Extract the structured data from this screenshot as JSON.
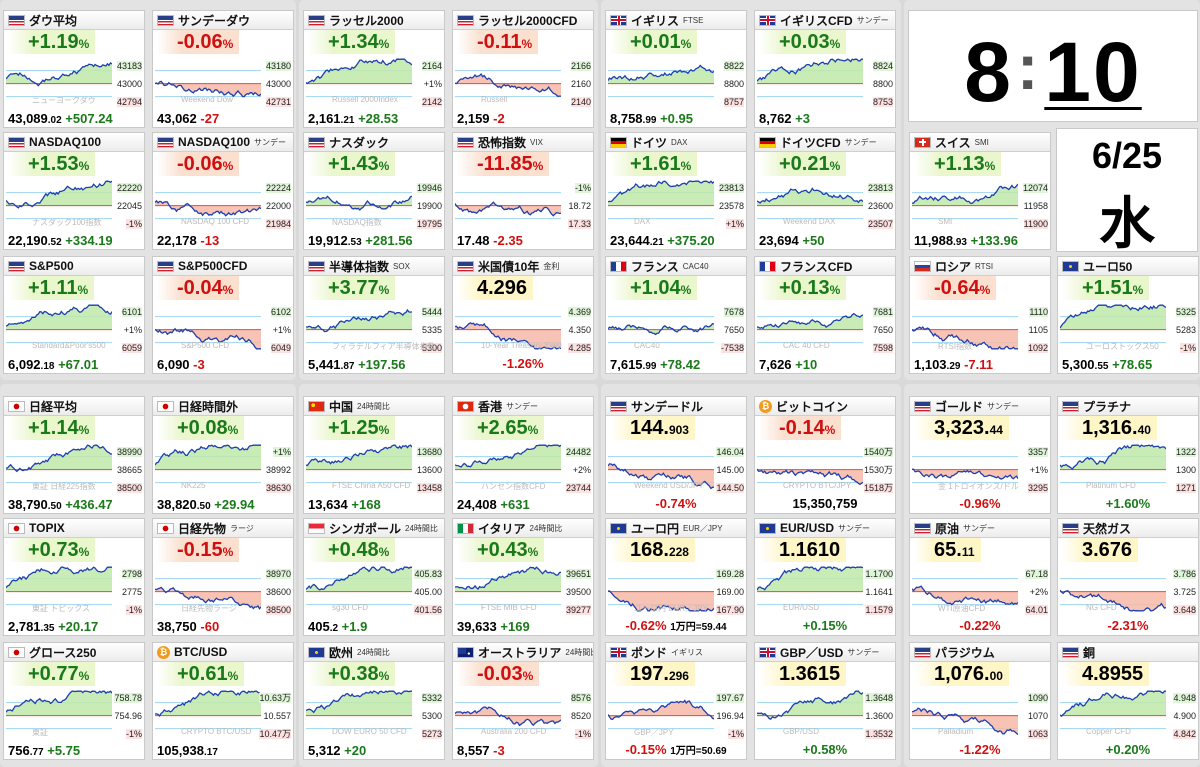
{
  "clock": {
    "hour": "8",
    "minute": "10",
    "date": "6/25",
    "weekday": "水"
  },
  "tiles": [
    {
      "id": "dow",
      "name": "ダウ平均",
      "sub": "",
      "flag": "us",
      "change": "+1.19",
      "unit": "%",
      "dir": "up",
      "price": "43,089",
      "dec": ".02",
      "diff": "+507.24",
      "axis": [
        "43183",
        "43000",
        "42794"
      ],
      "wm": "ニューヨークダウ"
    },
    {
      "id": "sunday-dow",
      "name": "サンデーダウ",
      "sub": "",
      "flag": "us",
      "change": "-0.06",
      "unit": "%",
      "dir": "dn",
      "price": "43,062",
      "dec": "",
      "diff": "-27",
      "axis": [
        "43180",
        "43000",
        "42731"
      ],
      "wm": "Weekend Dow"
    },
    {
      "id": "russell",
      "name": "ラッセル2000",
      "sub": "",
      "flag": "us",
      "change": "+1.34",
      "unit": "%",
      "dir": "up",
      "price": "2,161",
      "dec": ".21",
      "diff": "+28.53",
      "axis": [
        "2164",
        "+1%",
        "2142"
      ],
      "wm": "Russell 2000Index"
    },
    {
      "id": "russell-cfd",
      "name": "ラッセル2000CFD",
      "sub": "",
      "flag": "us",
      "change": "-0.11",
      "unit": "%",
      "dir": "dn",
      "price": "2,159",
      "dec": "",
      "diff": "-2",
      "axis": [
        "2166",
        "2160",
        "2140"
      ],
      "wm": "Russell"
    },
    {
      "id": "ftse",
      "name": "イギリス",
      "sub": "FTSE",
      "flag": "uk",
      "change": "+0.01",
      "unit": "%",
      "dir": "up",
      "price": "8,758",
      "dec": ".99",
      "diff": "+0.95",
      "axis": [
        "8822",
        "8800",
        "8757"
      ],
      "wm": ""
    },
    {
      "id": "ftse-cfd",
      "name": "イギリスCFD",
      "sub": "サンデー",
      "flag": "uk",
      "change": "+0.03",
      "unit": "%",
      "dir": "up",
      "price": "8,762",
      "dec": "",
      "diff": "+3",
      "axis": [
        "8824",
        "8800",
        "8753"
      ],
      "wm": ""
    },
    {
      "id": "nasdaq100",
      "name": "NASDAQ100",
      "sub": "",
      "flag": "us",
      "change": "+1.53",
      "unit": "%",
      "dir": "up",
      "price": "22,190",
      "dec": ".52",
      "diff": "+334.19",
      "axis": [
        "22220",
        "22045",
        "-1%"
      ],
      "wm": "ナスダック100指数"
    },
    {
      "id": "nasdaq100-sun",
      "name": "NASDAQ100",
      "sub": "サンデー",
      "flag": "us",
      "change": "-0.06",
      "unit": "%",
      "dir": "dn",
      "price": "22,178",
      "dec": "",
      "diff": "-13",
      "axis": [
        "22224",
        "22000",
        "21984"
      ],
      "wm": "NASDAQ 100 CFD"
    },
    {
      "id": "nasdaq",
      "name": "ナスダック",
      "sub": "",
      "flag": "us",
      "change": "+1.43",
      "unit": "%",
      "dir": "up",
      "price": "19,912",
      "dec": ".53",
      "diff": "+281.56",
      "axis": [
        "19946",
        "19900",
        "19795"
      ],
      "wm": "NASDAQ指数"
    },
    {
      "id": "vix",
      "name": "恐怖指数",
      "sub": "VIX",
      "flag": "us",
      "change": "-11.85",
      "unit": "%",
      "dir": "dn",
      "price": "17.48",
      "dec": "",
      "diff": "-2.35",
      "axis": [
        "-1%",
        "18.72",
        "17.33"
      ],
      "wm": ""
    },
    {
      "id": "dax",
      "name": "ドイツ",
      "sub": "DAX",
      "flag": "de",
      "change": "+1.61",
      "unit": "%",
      "dir": "up",
      "price": "23,644",
      "dec": ".21",
      "diff": "+375.20",
      "axis": [
        "23813",
        "23578",
        "+1%"
      ],
      "wm": "DAX"
    },
    {
      "id": "dax-cfd",
      "name": "ドイツCFD",
      "sub": "サンデー",
      "flag": "de",
      "change": "+0.21",
      "unit": "%",
      "dir": "up",
      "price": "23,694",
      "dec": "",
      "diff": "+50",
      "axis": [
        "23813",
        "23600",
        "23507"
      ],
      "wm": "Weekend DAX"
    },
    {
      "id": "smi",
      "name": "スイス",
      "sub": "SMI",
      "flag": "ch",
      "change": "+1.13",
      "unit": "%",
      "dir": "up",
      "price": "11,988",
      "dec": ".93",
      "diff": "+133.96",
      "axis": [
        "12074",
        "11958",
        "11900"
      ],
      "wm": "SMI"
    },
    {
      "id": "sp500",
      "name": "S&P500",
      "sub": "",
      "flag": "us",
      "change": "+1.11",
      "unit": "%",
      "dir": "up",
      "price": "6,092",
      "dec": ".18",
      "diff": "+67.01",
      "axis": [
        "6101",
        "+1%",
        "6059"
      ],
      "wm": "Standard&Poor's500"
    },
    {
      "id": "sp500-cfd",
      "name": "S&P500CFD",
      "sub": "",
      "flag": "us",
      "change": "-0.04",
      "unit": "%",
      "dir": "dn",
      "price": "6,090",
      "dec": "",
      "diff": "-3",
      "axis": [
        "6102",
        "+1%",
        "6049"
      ],
      "wm": "S&P500 CFD"
    },
    {
      "id": "sox",
      "name": "半導体指数",
      "sub": "SOX",
      "flag": "us",
      "change": "+3.77",
      "unit": "%",
      "dir": "up",
      "price": "5,441",
      "dec": ".87",
      "diff": "+197.56",
      "axis": [
        "5444",
        "5335",
        "5300"
      ],
      "wm": "フィラデルフィア半導体指数"
    },
    {
      "id": "us10y",
      "name": "米国債10年",
      "sub": "金利",
      "flag": "us",
      "change": "4.296",
      "unit": "",
      "dir": "lv",
      "price": "-1.26",
      "dec": "",
      "diff": "%",
      "axis": [
        "4.369",
        "4.350",
        "4.285"
      ],
      "wm": "10-Year Treasury Yield"
    },
    {
      "id": "cac40",
      "name": "フランス",
      "sub": "CAC40",
      "flag": "fr",
      "change": "+1.04",
      "unit": "%",
      "dir": "up",
      "price": "7,615",
      "dec": ".99",
      "diff": "+78.42",
      "axis": [
        "7678",
        "7650",
        "-7538"
      ],
      "wm": "CAC40"
    },
    {
      "id": "cac-cfd",
      "name": "フランスCFD",
      "sub": "",
      "flag": "fr",
      "change": "+0.13",
      "unit": "%",
      "dir": "up",
      "price": "7,626",
      "dec": "",
      "diff": "+10",
      "axis": [
        "7681",
        "7650",
        "7598"
      ],
      "wm": "CAC 40 CFD"
    },
    {
      "id": "rtsi",
      "name": "ロシア",
      "sub": "RTSI",
      "flag": "ru",
      "change": "-0.64",
      "unit": "%",
      "dir": "dn",
      "price": "1,103",
      "dec": ".29",
      "diff": "-7.11",
      "axis": [
        "1110",
        "1105",
        "1092"
      ],
      "wm": "RTSI指数"
    },
    {
      "id": "euro50",
      "name": "ユーロ50",
      "sub": "",
      "flag": "eu",
      "change": "+1.51",
      "unit": "%",
      "dir": "up",
      "price": "5,300",
      "dec": ".55",
      "diff": "+78.65",
      "axis": [
        "5325",
        "5283",
        "-1%"
      ],
      "wm": "ユーロストックス50"
    },
    {
      "id": "nikkei",
      "name": "日経平均",
      "sub": "",
      "flag": "jp",
      "change": "+1.14",
      "unit": "%",
      "dir": "up",
      "price": "38,790",
      "dec": ".50",
      "diff": "+436.47",
      "axis": [
        "38990",
        "38665",
        "38500"
      ],
      "wm": "東証 日経225指数"
    },
    {
      "id": "nikkei-night",
      "name": "日経時間外",
      "sub": "",
      "flag": "jp",
      "change": "+0.08",
      "unit": "%",
      "dir": "up",
      "price": "38,820",
      "dec": ".50",
      "diff": "+29.94",
      "axis": [
        "+1%",
        "38992",
        "38630"
      ],
      "wm": "NK225"
    },
    {
      "id": "china",
      "name": "中国",
      "sub": "24時間比",
      "flag": "cn",
      "change": "+1.25",
      "unit": "%",
      "dir": "up",
      "price": "13,634",
      "dec": "",
      "diff": "+168",
      "axis": [
        "13680",
        "13600",
        "13458"
      ],
      "wm": "FTSE China A50 CFD"
    },
    {
      "id": "hongkong",
      "name": "香港",
      "sub": "サンデー",
      "flag": "hk",
      "change": "+2.65",
      "unit": "%",
      "dir": "up",
      "price": "24,408",
      "dec": "",
      "diff": "+631",
      "axis": [
        "24482",
        "+2%",
        "23744"
      ],
      "wm": "ハンセン指数CFD"
    },
    {
      "id": "topix",
      "name": "TOPIX",
      "sub": "",
      "flag": "jp",
      "change": "+0.73",
      "unit": "%",
      "dir": "up",
      "price": "2,781",
      "dec": ".35",
      "diff": "+20.17",
      "axis": [
        "2798",
        "2775",
        "-1%"
      ],
      "wm": "東証 トピックス"
    },
    {
      "id": "nikkei-futures",
      "name": "日経先物",
      "sub": "ラージ",
      "flag": "jp",
      "change": "-0.15",
      "unit": "%",
      "dir": "dn",
      "price": "38,750",
      "dec": "",
      "diff": "-60",
      "axis": [
        "38970",
        "38600",
        "38500"
      ],
      "wm": "日経先物ラージ"
    },
    {
      "id": "singapore",
      "name": "シンガポール",
      "sub": "24時間比",
      "flag": "sg",
      "change": "+0.48",
      "unit": "%",
      "dir": "up",
      "price": "405",
      "dec": ".2",
      "diff": "+1.9",
      "axis": [
        "405.83",
        "405.00",
        "401.56"
      ],
      "wm": "sg30 CFD"
    },
    {
      "id": "italy",
      "name": "イタリア",
      "sub": "24時間比",
      "flag": "it",
      "change": "+0.43",
      "unit": "%",
      "dir": "up",
      "price": "39,633",
      "dec": "",
      "diff": "+169",
      "axis": [
        "39651",
        "39500",
        "39277"
      ],
      "wm": "FTSE MIB CFD"
    },
    {
      "id": "growth250",
      "name": "グロース250",
      "sub": "",
      "flag": "jp",
      "change": "+0.77",
      "unit": "%",
      "dir": "up",
      "price": "756",
      "dec": ".77",
      "diff": "+5.75",
      "axis": [
        "758.78",
        "754.96",
        "-1%"
      ],
      "wm": "東証"
    },
    {
      "id": "btcusd",
      "name": "BTC/USD",
      "sub": "",
      "flag": "btc",
      "change": "+0.61",
      "unit": "%",
      "dir": "up",
      "price": "105,938",
      "dec": ".17",
      "diff": "",
      "axis": [
        "10.63万",
        "10.557",
        "10.47万"
      ],
      "wm": "CRYPTO BTC/USD"
    },
    {
      "id": "europe",
      "name": "欧州",
      "sub": "24時間比",
      "flag": "eu",
      "change": "+0.38",
      "unit": "%",
      "dir": "up",
      "price": "5,312",
      "dec": "",
      "diff": "+20",
      "axis": [
        "5332",
        "5300",
        "5273"
      ],
      "wm": "DOW EURO 50 CFD"
    },
    {
      "id": "australia",
      "name": "オーストラリア",
      "sub": "24時間比",
      "flag": "au",
      "change": "-0.03",
      "unit": "%",
      "dir": "dn",
      "price": "8,557",
      "dec": "",
      "diff": "-3",
      "axis": [
        "8576",
        "8520",
        "-1%"
      ],
      "wm": "Australia 200 CFD"
    }
  ],
  "fx": [
    {
      "id": "usdjpy-sun",
      "name": "サンデードル",
      "sub": "",
      "flag": "us",
      "value": "144.",
      "dec": "903",
      "chg": "-0.74%",
      "dir": "dn",
      "note": "",
      "axis": [
        "146.04",
        "145.00",
        "144.50"
      ],
      "wm": "Weekend USD/JPY"
    },
    {
      "id": "bitcoin",
      "name": "ビットコイン",
      "sub": "",
      "flag": "btc",
      "value": "-0.14",
      "dec": "%",
      "chg": "15,350,759",
      "dir": "dn",
      "note": "",
      "axis": [
        "1540万",
        "1530万",
        "1518万"
      ],
      "wm": "CRYPTO BTC/JPY"
    },
    {
      "id": "eurjpy",
      "name": "ユーロ円",
      "sub": "EUR／JPY",
      "flag": "eu",
      "value": "168.",
      "dec": "228",
      "chg": "-0.62%",
      "dir": "dn",
      "note": "1万円=59.44",
      "axis": [
        "169.28",
        "169.00",
        "167.90"
      ],
      "wm": "ユーロ円 EUR／JPY"
    },
    {
      "id": "eurusd",
      "name": "EUR/USD",
      "sub": "サンデー",
      "flag": "eu",
      "value": "1.1610",
      "dec": "",
      "chg": "+0.15%",
      "dir": "up",
      "note": "",
      "axis": [
        "1.1700",
        "1.1641",
        "1.1579"
      ],
      "wm": "EUR/USD"
    },
    {
      "id": "gbpjpy",
      "name": "ポンド",
      "sub": "イギリス",
      "flag": "uk",
      "value": "197.",
      "dec": "296",
      "chg": "-0.15%",
      "dir": "dn",
      "note": "1万円=50.69",
      "axis": [
        "197.67",
        "196.94",
        "-1%"
      ],
      "wm": "GBP／JPY"
    },
    {
      "id": "gbpusd",
      "name": "GBP／USD",
      "sub": "サンデー",
      "flag": "uk",
      "value": "1.3615",
      "dec": "",
      "chg": "+0.58%",
      "dir": "up",
      "note": "",
      "axis": [
        "1.3648",
        "1.3600",
        "1.3532"
      ],
      "wm": "GBP/USD"
    },
    {
      "id": "gold",
      "name": "ゴールド",
      "sub": "サンデー",
      "flag": "us",
      "value": "3,323.",
      "dec": "44",
      "chg": "-0.96%",
      "dir": "dn",
      "note": "",
      "axis": [
        "3357",
        "+1%",
        "3295"
      ],
      "wm": "金 1トロイオンス/ドル"
    },
    {
      "id": "platinum",
      "name": "プラチナ",
      "sub": "",
      "flag": "us",
      "value": "1,316.",
      "dec": "40",
      "chg": "+1.60%",
      "dir": "up",
      "note": "",
      "axis": [
        "1322",
        "1300",
        "1271"
      ],
      "wm": "Platinum CFD"
    },
    {
      "id": "crude",
      "name": "原油",
      "sub": "サンデー",
      "flag": "us",
      "value": "65.",
      "dec": "11",
      "chg": "-0.22%",
      "dir": "dn",
      "note": "",
      "axis": [
        "67.18",
        "+2%",
        "64.01"
      ],
      "wm": "WTI原油CFD"
    },
    {
      "id": "natgas",
      "name": "天然ガス",
      "sub": "",
      "flag": "us",
      "value": "3.676",
      "dec": "",
      "chg": "-2.31%",
      "dir": "dn",
      "note": "",
      "axis": [
        "3.786",
        "3.725",
        "3.648"
      ],
      "wm": "NG CFD"
    },
    {
      "id": "palladium",
      "name": "パラジウム",
      "sub": "",
      "flag": "us",
      "value": "1,076.",
      "dec": "00",
      "chg": "-1.22%",
      "dir": "dn",
      "note": "",
      "axis": [
        "1090",
        "1070",
        "1063"
      ],
      "wm": "Palladium"
    },
    {
      "id": "copper",
      "name": "銅",
      "sub": "",
      "flag": "us",
      "value": "4.8955",
      "dec": "",
      "chg": "+0.20%",
      "dir": "up",
      "note": "",
      "axis": [
        "4.948",
        "4.900",
        "4.842"
      ],
      "wm": "Copper CFD"
    }
  ]
}
